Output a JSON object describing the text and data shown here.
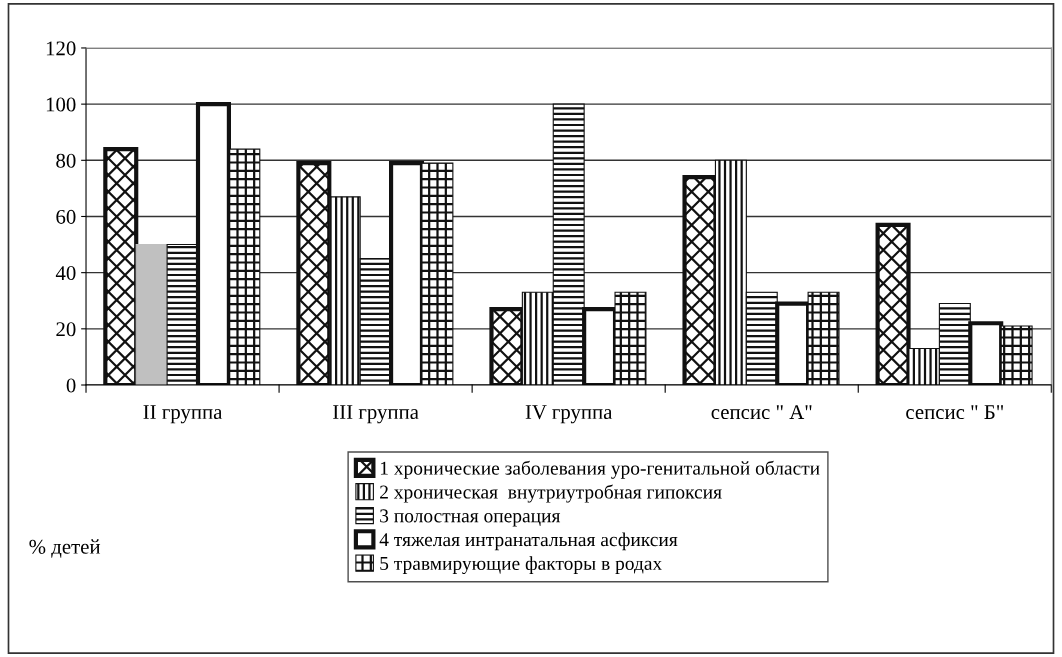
{
  "chart_data": {
    "type": "bar",
    "categories": [
      "II группа",
      "III группа",
      "IV группа",
      "сепсис \" А\"",
      "сепсис \" Б\""
    ],
    "annotations": [
      "% детей"
    ],
    "series": [
      {
        "name": "1 хронические заболевания уро-генитальной области",
        "color": "#111111",
        "values": [
          84,
          79,
          27,
          74,
          57
        ]
      },
      {
        "name": "2 хроническая  внутриутробная гипоксия",
        "color": "#111111",
        "colors": [
          "#c0c0c0",
          "#111111",
          "#111111",
          "#111111",
          "#111111"
        ],
        "values": [
          50,
          67,
          33,
          80,
          13
        ]
      },
      {
        "name": "3 полостная операция",
        "color": "#111111",
        "values": [
          50,
          45,
          100,
          33,
          29
        ]
      },
      {
        "name": "4 тяжелая интранатальная асфиксия",
        "color": "#111111",
        "values": [
          100,
          79,
          27,
          29,
          22
        ]
      },
      {
        "name": "5 травмирующие факторы в родах",
        "color": "#111111",
        "values": [
          84,
          79,
          33,
          33,
          21
        ]
      }
    ],
    "ylim": [
      0,
      120
    ],
    "yticks": [
      0,
      20,
      40,
      60,
      80,
      100,
      120
    ],
    "grid": "y",
    "legend": "bottom"
  }
}
